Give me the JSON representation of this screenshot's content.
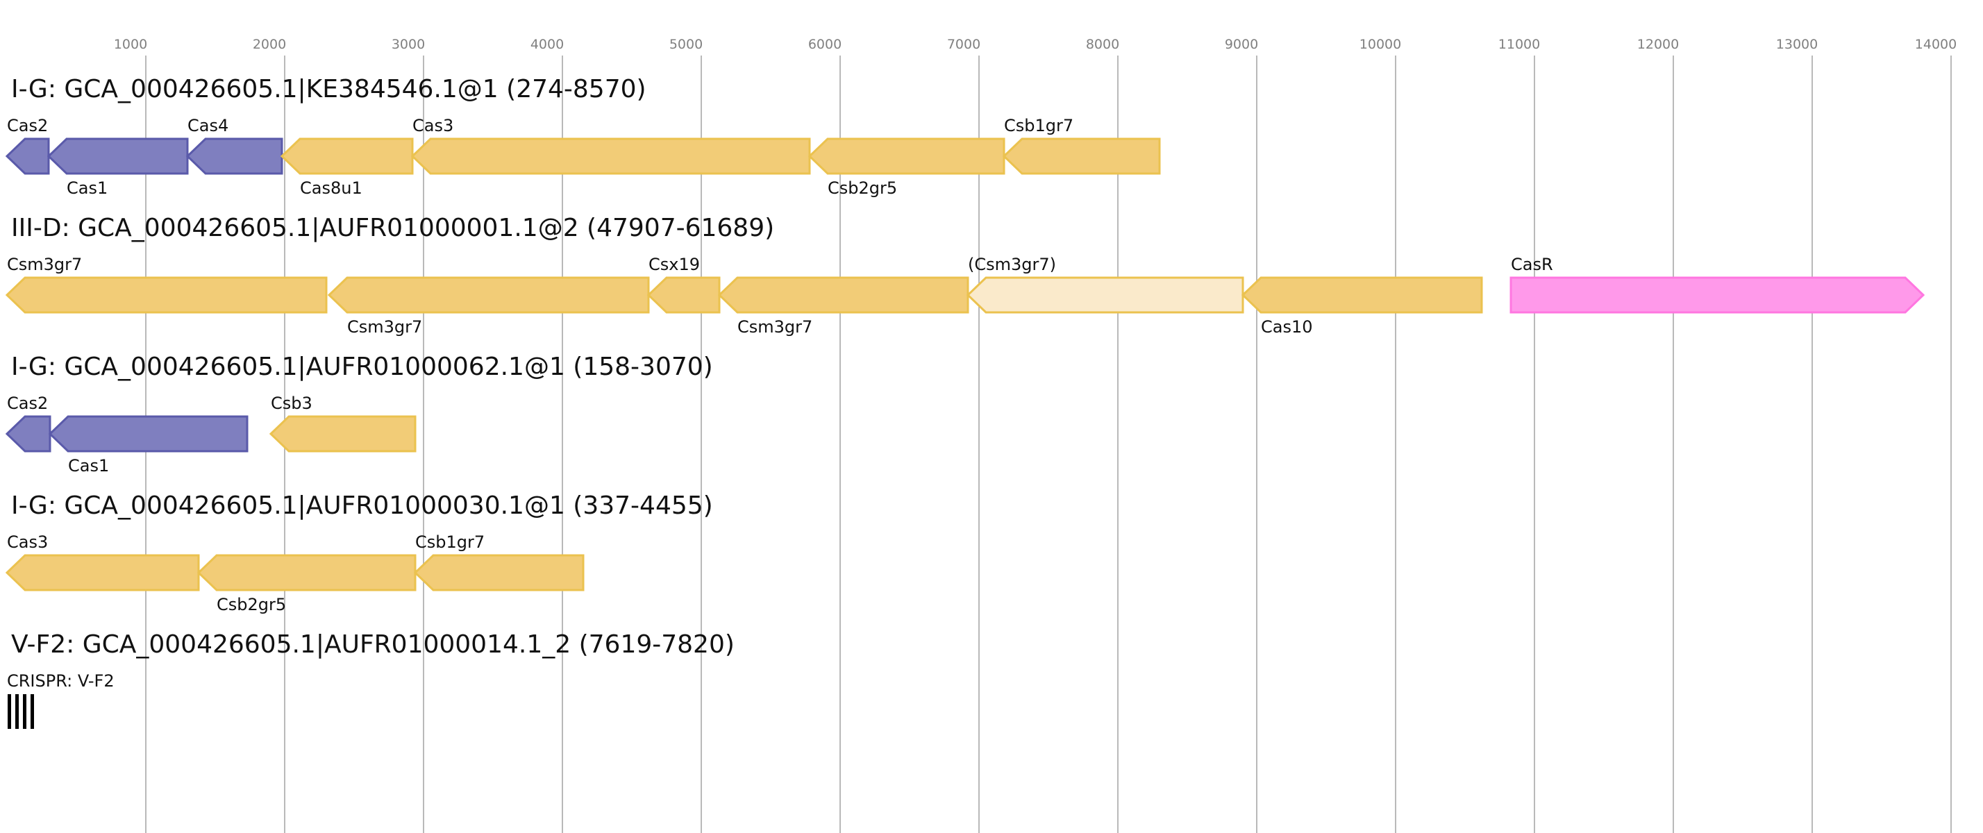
{
  "axis": {
    "ticks": [
      1000,
      2000,
      3000,
      4000,
      5000,
      6000,
      7000,
      8000,
      9000,
      10000,
      11000,
      12000,
      13000,
      14000
    ],
    "grid": true
  },
  "colors": {
    "blue_fill": "#7f7fbf",
    "blue_stroke": "#5a5aaa",
    "yellow_fill": "#f2cc77",
    "yellow_stroke": "#ebc24f",
    "pale_fill": "#faeacb",
    "pink_fill": "#ff99ea",
    "pink_stroke": "#ff77e0",
    "crispr": "#000000"
  },
  "loci": [
    {
      "title": "I-G: GCA_000426605.1|KE384546.1@1 (274-8570)",
      "genes": [
        {
          "label": "Cas2",
          "start": 0,
          "end": 300,
          "strand": "-",
          "color": "blue"
        },
        {
          "label": "Cas1",
          "start": 300,
          "end": 1300,
          "strand": "-",
          "color": "blue"
        },
        {
          "label": "Cas4",
          "start": 1300,
          "end": 1980,
          "strand": "-",
          "color": "blue"
        },
        {
          "label": "Cas8u1",
          "start": 1980,
          "end": 2920,
          "strand": "-",
          "color": "yellow"
        },
        {
          "label": "Cas3",
          "start": 2920,
          "end": 5780,
          "strand": "-",
          "color": "yellow"
        },
        {
          "label": "Csb2gr5",
          "start": 5780,
          "end": 7180,
          "strand": "-",
          "color": "yellow"
        },
        {
          "label": "Csb1gr7",
          "start": 7180,
          "end": 8300,
          "strand": "-",
          "color": "yellow"
        }
      ]
    },
    {
      "title": "III-D: GCA_000426605.1|AUFR01000001.1@2 (47907-61689)",
      "genes": [
        {
          "label": "Csm3gr7",
          "start": 0,
          "end": 2300,
          "strand": "-",
          "color": "yellow"
        },
        {
          "label": "Csm3gr7",
          "start": 2320,
          "end": 4620,
          "strand": "-",
          "color": "yellow"
        },
        {
          "label": "Csx19",
          "start": 4620,
          "end": 5130,
          "strand": "-",
          "color": "yellow"
        },
        {
          "label": "Csm3gr7",
          "start": 5130,
          "end": 6920,
          "strand": "-",
          "color": "yellow"
        },
        {
          "label": "(Csm3gr7)",
          "start": 6920,
          "end": 8900,
          "strand": "-",
          "color": "pale"
        },
        {
          "label": "Cas10",
          "start": 8900,
          "end": 10620,
          "strand": "-",
          "color": "yellow"
        },
        {
          "label": "CasR",
          "start": 10830,
          "end": 13800,
          "strand": "+",
          "color": "pink"
        }
      ]
    },
    {
      "title": "I-G: GCA_000426605.1|AUFR01000062.1@1 (158-3070)",
      "genes": [
        {
          "label": "Cas2",
          "start": 0,
          "end": 310,
          "strand": "-",
          "color": "blue"
        },
        {
          "label": "Cas1",
          "start": 310,
          "end": 1730,
          "strand": "-",
          "color": "blue"
        },
        {
          "label": "Csb3",
          "start": 1900,
          "end": 2940,
          "strand": "-",
          "color": "yellow"
        }
      ]
    },
    {
      "title": "I-G: GCA_000426605.1|AUFR01000030.1@1 (337-4455)",
      "genes": [
        {
          "label": "Cas3",
          "start": 0,
          "end": 1380,
          "strand": "-",
          "color": "yellow"
        },
        {
          "label": "Csb2gr5",
          "start": 1380,
          "end": 2940,
          "strand": "-",
          "color": "yellow"
        },
        {
          "label": "Csb1gr7",
          "start": 2940,
          "end": 4150,
          "strand": "-",
          "color": "yellow"
        }
      ]
    },
    {
      "title": "V-F2: GCA_000426605.1|AUFR01000014.1_2 (7619-7820)",
      "genes": [],
      "crispr": {
        "label": "CRISPR: V-F2",
        "repeats": 4
      }
    }
  ]
}
